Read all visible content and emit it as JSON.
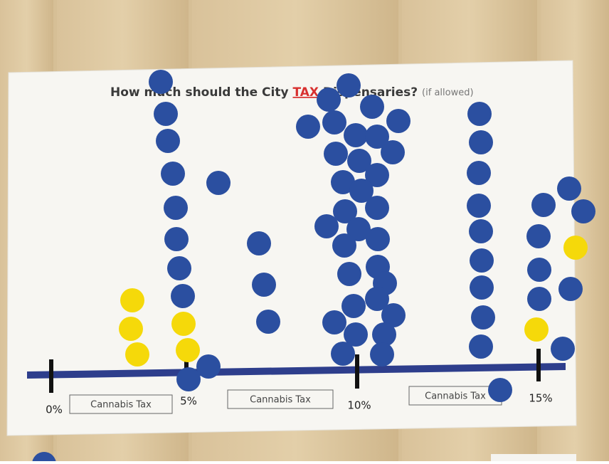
{
  "poster": {
    "title": {
      "lead": "How much should the City",
      "emphasis": "TAX",
      "tail": "Dispensaries?",
      "note": "(if allowed)"
    },
    "axis_labels": [
      "0%",
      "5%",
      "10%",
      "15%"
    ],
    "boxes": [
      "Cannabis Tax",
      "Cannabis Tax",
      "Cannabis Tax"
    ]
  }
}
